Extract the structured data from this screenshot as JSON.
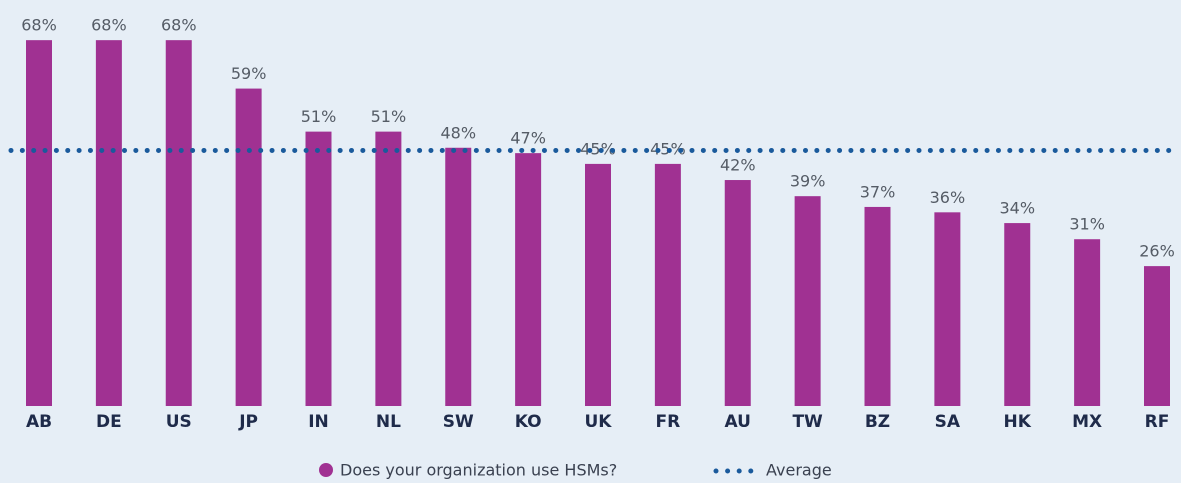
{
  "chart_data": {
    "type": "bar",
    "categories": [
      "AB",
      "DE",
      "US",
      "JP",
      "IN",
      "NL",
      "SW",
      "KO",
      "UK",
      "FR",
      "AU",
      "TW",
      "BZ",
      "SA",
      "HK",
      "MX",
      "RF"
    ],
    "series": [
      {
        "name": "Does your organization use HSMs?",
        "color": "#a03192",
        "values": [
          68,
          68,
          68,
          59,
          51,
          51,
          48,
          47,
          45,
          45,
          42,
          39,
          37,
          36,
          34,
          31,
          26
        ],
        "value_labels": [
          "68%",
          "68%",
          "68%",
          "59%",
          "51%",
          "51%",
          "48%",
          "47%",
          "45%",
          "45%",
          "42%",
          "39%",
          "37%",
          "36%",
          "34%",
          "31%",
          "26%"
        ]
      }
    ],
    "average": {
      "name": "Average",
      "color": "#1a5a9c",
      "value": 47.5
    },
    "ylim": [
      0,
      75
    ]
  }
}
